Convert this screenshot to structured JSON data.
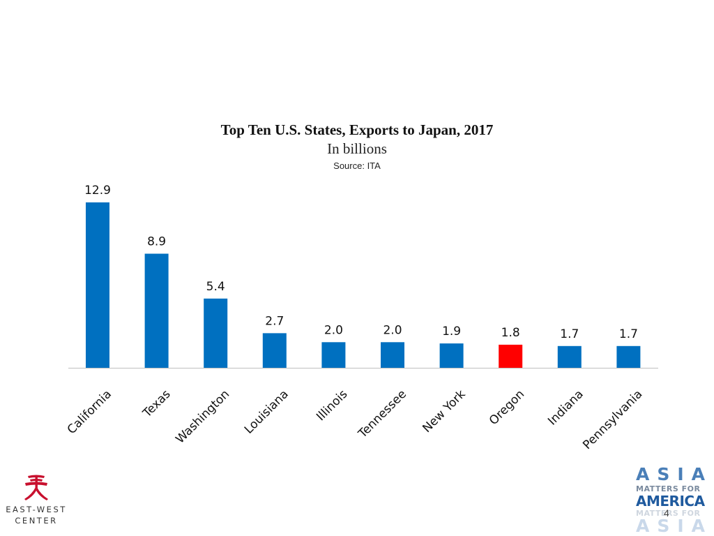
{
  "chart_data": {
    "type": "bar",
    "title": "Top Ten U.S. States, Exports to Japan, 2017",
    "subtitle": "In billions",
    "source": "Source: ITA",
    "categories": [
      "California",
      "Texas",
      "Washington",
      "Louisiana",
      "Illinois",
      "Tennessee",
      "New York",
      "Oregon",
      "Indiana",
      "Pennsylvania"
    ],
    "values": [
      12.9,
      8.9,
      5.4,
      2.7,
      2.0,
      2.0,
      1.9,
      1.8,
      1.7,
      1.7
    ],
    "value_labels": [
      "12.9",
      "8.9",
      "5.4",
      "2.7",
      "2.0",
      "2.0",
      "1.9",
      "1.8",
      "1.7",
      "1.7"
    ],
    "xlabel": "",
    "ylabel": "",
    "ylim": [
      0,
      12.9
    ],
    "grid": false,
    "bar_color": "#0070c0",
    "highlight_color": "#ff0000",
    "highlight_category": "Oregon"
  },
  "logos": {
    "left": {
      "name": "east-west-center-logo",
      "line1": "EAST-WEST",
      "line2": "CENTER"
    },
    "right": {
      "name": "asia-matters-for-america-logo",
      "line1": "ASIA",
      "line2": "MATTERS FOR",
      "line3": "AMERICA",
      "line4": "MATTERS FOR",
      "line5": "ASIA"
    }
  },
  "page_number": "4"
}
